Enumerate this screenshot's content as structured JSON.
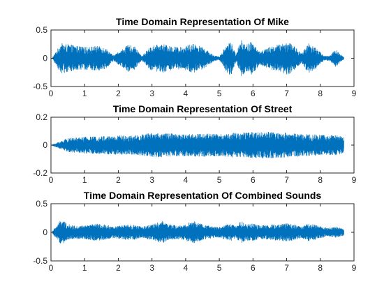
{
  "chart_data": [
    {
      "type": "line",
      "title": "Time Domain Representation Of Mike",
      "xlabel": "",
      "ylabel": "",
      "xlim": [
        0,
        9
      ],
      "ylim": [
        -0.5,
        0.5
      ],
      "xticks": [
        "0",
        "1",
        "2",
        "3",
        "4",
        "5",
        "6",
        "7",
        "8",
        "9"
      ],
      "yticks": [
        "0.5",
        "0",
        "-0.5"
      ],
      "grid": false,
      "color": "#0072BD",
      "series": [
        {
          "x": [
            0.05,
            0.3,
            0.6,
            1.0,
            1.35,
            1.6,
            1.85,
            2.3,
            2.5,
            2.7,
            2.95,
            3.3,
            3.5,
            3.85,
            4.25,
            4.55,
            4.85,
            5.0,
            5.25,
            5.35,
            5.5,
            5.65,
            5.8,
            5.95,
            6.2,
            6.5,
            6.85,
            7.05,
            7.2,
            7.45,
            7.65,
            7.85,
            8.1,
            8.25,
            8.45,
            8.7
          ],
          "y": [
            0.02,
            0.27,
            0.24,
            0.2,
            0.22,
            0.2,
            0.05,
            0.24,
            0.2,
            0.04,
            0.21,
            0.26,
            0.22,
            0.2,
            0.27,
            0.18,
            0.05,
            0.03,
            0.28,
            0.3,
            0.06,
            0.36,
            0.24,
            0.3,
            0.12,
            0.2,
            0.26,
            0.3,
            0.24,
            0.08,
            0.28,
            0.2,
            0.05,
            0.04,
            0.16,
            0.02
          ]
        }
      ]
    },
    {
      "type": "line",
      "title": "Time Domain Representation Of Street",
      "xlabel": "",
      "ylabel": "",
      "xlim": [
        0,
        9
      ],
      "ylim": [
        -0.2,
        0.2
      ],
      "xticks": [
        "0",
        "1",
        "2",
        "3",
        "4",
        "5",
        "6",
        "7",
        "8",
        "9"
      ],
      "yticks": [
        "0.2",
        "0",
        "-0.2"
      ],
      "grid": false,
      "color": "#0072BD",
      "series": [
        {
          "x": [
            0.05,
            0.5,
            1.0,
            2.0,
            2.5,
            3.0,
            3.5,
            4.0,
            4.5,
            5.0,
            5.5,
            6.0,
            6.5,
            7.0,
            7.5,
            8.0,
            8.5,
            8.7
          ],
          "y": [
            0.005,
            0.05,
            0.06,
            0.07,
            0.07,
            0.09,
            0.085,
            0.08,
            0.085,
            0.08,
            0.09,
            0.095,
            0.095,
            0.09,
            0.08,
            0.075,
            0.07,
            0.065
          ]
        }
      ]
    },
    {
      "type": "line",
      "title": "Time Domain Representation Of Combined Sounds",
      "xlabel": "",
      "ylabel": "",
      "xlim": [
        0,
        9
      ],
      "ylim": [
        -0.5,
        0.5
      ],
      "xticks": [
        "0",
        "1",
        "2",
        "3",
        "4",
        "5",
        "6",
        "7",
        "8",
        "9"
      ],
      "yticks": [
        "0.5",
        "0",
        "-0.5"
      ],
      "grid": false,
      "color": "#0072BD",
      "series": [
        {
          "x": [
            0.05,
            0.3,
            0.6,
            1.0,
            1.35,
            1.6,
            1.85,
            2.3,
            2.5,
            2.7,
            2.95,
            3.3,
            3.5,
            3.85,
            4.25,
            4.55,
            4.85,
            5.0,
            5.25,
            5.35,
            5.5,
            5.65,
            5.8,
            5.95,
            6.2,
            6.5,
            6.85,
            7.05,
            7.2,
            7.45,
            7.65,
            7.85,
            8.1,
            8.25,
            8.45,
            8.7
          ],
          "y": [
            0.03,
            0.22,
            0.12,
            0.12,
            0.15,
            0.14,
            0.1,
            0.14,
            0.13,
            0.1,
            0.13,
            0.2,
            0.14,
            0.12,
            0.2,
            0.13,
            0.1,
            0.1,
            0.14,
            0.16,
            0.1,
            0.2,
            0.14,
            0.16,
            0.12,
            0.13,
            0.15,
            0.16,
            0.14,
            0.1,
            0.16,
            0.13,
            0.09,
            0.08,
            0.1,
            0.06
          ]
        }
      ]
    }
  ]
}
